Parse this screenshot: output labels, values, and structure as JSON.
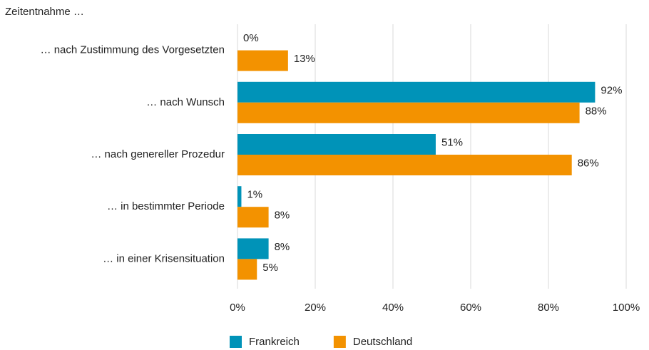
{
  "chart_data": {
    "type": "barh",
    "title": "Zeitentnahme …",
    "categories": [
      "… nach Zustimmung des Vorgesetzten",
      "… nach Wunsch",
      "… nach genereller Prozedur",
      "… in bestimmter Periode",
      "… in einer Krisensituation"
    ],
    "series": [
      {
        "name": "Frankreich",
        "color": "#0093b8",
        "values": [
          0,
          92,
          51,
          1,
          8
        ],
        "value_labels": [
          "0%",
          "92%",
          "51%",
          "1%",
          "8%"
        ]
      },
      {
        "name": "Deutschland",
        "color": "#f39200",
        "values": [
          13,
          88,
          86,
          8,
          5
        ],
        "value_labels": [
          "13%",
          "88%",
          "86%",
          "8%",
          "5%"
        ]
      }
    ],
    "xlim": [
      0,
      100
    ],
    "xticks": [
      {
        "value": 0,
        "label": "0%"
      },
      {
        "value": 20,
        "label": "20%"
      },
      {
        "value": 40,
        "label": "40%"
      },
      {
        "value": 60,
        "label": "60%"
      },
      {
        "value": 80,
        "label": "80%"
      },
      {
        "value": 100,
        "label": "100%"
      }
    ],
    "grid": true,
    "legend": "bottom"
  }
}
